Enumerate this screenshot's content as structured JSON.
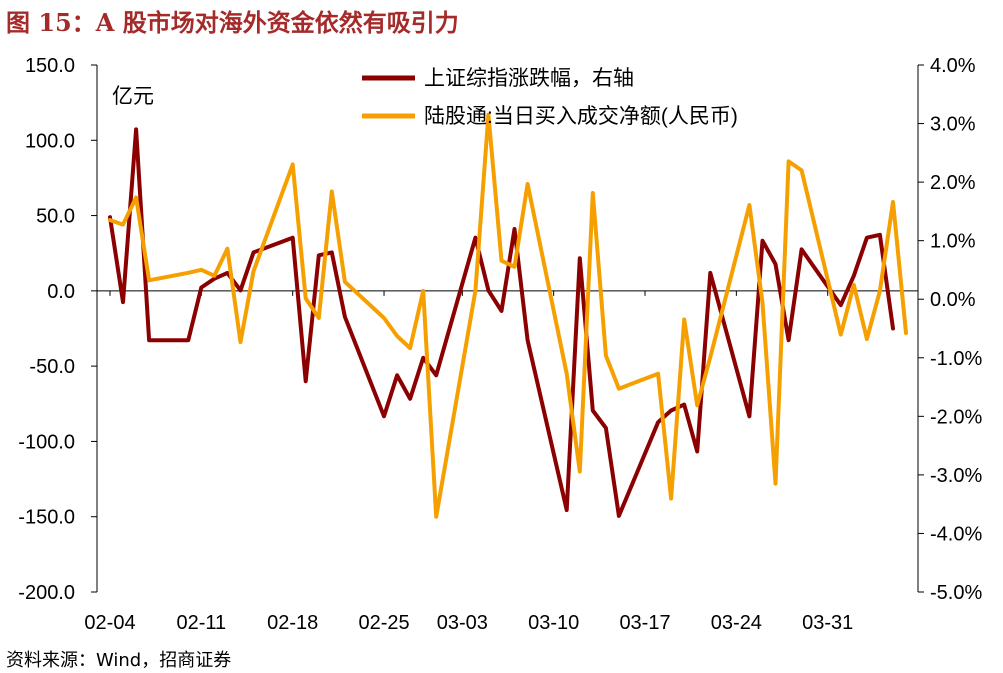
{
  "title": "图 15：A 股市场对海外资金依然有吸引力",
  "source": "资料来源：Wind，招商证券",
  "chart_data": {
    "type": "line",
    "unit_left": "亿元",
    "left_axis": {
      "min": -200,
      "max": 150,
      "step": 50,
      "ticks": [
        "-200.0",
        "-150.0",
        "-100.0",
        "-50.0",
        "0.0",
        "50.0",
        "100.0",
        "150.0"
      ]
    },
    "right_axis": {
      "min": -5,
      "max": 4,
      "step": 1,
      "ticks": [
        "-5.0%",
        "-4.0%",
        "-3.0%",
        "-2.0%",
        "-1.0%",
        "0.0%",
        "1.0%",
        "2.0%",
        "3.0%",
        "4.0%"
      ]
    },
    "x_ticks": [
      "02-04",
      "02-11",
      "02-18",
      "02-25",
      "03-03",
      "03-10",
      "03-17",
      "03-24",
      "03-31"
    ],
    "x_tick_days": [
      4,
      11,
      18,
      25,
      31,
      38,
      45,
      52,
      59
    ],
    "legend_position": "top",
    "colors": {
      "series1": "#8B0000",
      "series2": "#F5A000",
      "title": "#a52a2a",
      "axis": "#000000"
    },
    "series": [
      {
        "name": "上证综指涨跌幅，右轴",
        "axis": "right",
        "color": "#8B0000",
        "points": [
          [
            4,
            1.4
          ],
          [
            5,
            -0.05
          ],
          [
            6,
            2.9
          ],
          [
            7,
            -0.7
          ],
          [
            10,
            -0.7
          ],
          [
            11,
            0.2
          ],
          [
            12,
            0.35
          ],
          [
            13,
            0.45
          ],
          [
            14,
            0.15
          ],
          [
            15,
            0.8
          ],
          [
            18,
            1.05
          ],
          [
            19,
            -1.4
          ],
          [
            20,
            0.75
          ],
          [
            21,
            0.8
          ],
          [
            22,
            -0.3
          ],
          [
            25,
            -2.0
          ],
          [
            26,
            -1.3
          ],
          [
            27,
            -1.7
          ],
          [
            28,
            -1.0
          ],
          [
            29,
            -1.3
          ],
          [
            32,
            1.05
          ],
          [
            33,
            0.15
          ],
          [
            34,
            -0.2
          ],
          [
            35,
            1.2
          ],
          [
            36,
            -0.7
          ],
          [
            39,
            -3.6
          ],
          [
            40,
            0.7
          ],
          [
            41,
            -1.9
          ],
          [
            42,
            -2.2
          ],
          [
            43,
            -3.7
          ],
          [
            46,
            -2.1
          ],
          [
            47,
            -1.9
          ],
          [
            48,
            -1.8
          ],
          [
            49,
            -2.6
          ],
          [
            50,
            0.45
          ],
          [
            53,
            -2.0
          ],
          [
            54,
            1.0
          ],
          [
            55,
            0.6
          ],
          [
            56,
            -0.7
          ],
          [
            57,
            0.85
          ],
          [
            60,
            -0.1
          ],
          [
            61,
            0.4
          ],
          [
            62,
            1.05
          ],
          [
            63,
            1.1
          ],
          [
            64,
            -0.5
          ]
        ]
      },
      {
        "name": "陆股通:当日买入成交净额(人民币)",
        "axis": "left",
        "color": "#F5A000",
        "points": [
          [
            4,
            47
          ],
          [
            5,
            44
          ],
          [
            6,
            62
          ],
          [
            7,
            7
          ],
          [
            10,
            12
          ],
          [
            11,
            14
          ],
          [
            12,
            10
          ],
          [
            13,
            28
          ],
          [
            14,
            -34
          ],
          [
            15,
            13
          ],
          [
            18,
            84
          ],
          [
            19,
            -5
          ],
          [
            20,
            -18
          ],
          [
            21,
            66
          ],
          [
            22,
            6
          ],
          [
            25,
            -18
          ],
          [
            26,
            -30
          ],
          [
            27,
            -38
          ],
          [
            28,
            0
          ],
          [
            29,
            -150
          ],
          [
            32,
            0
          ],
          [
            33,
            117
          ],
          [
            34,
            20
          ],
          [
            35,
            16
          ],
          [
            36,
            71
          ],
          [
            39,
            -55
          ],
          [
            40,
            -120
          ],
          [
            41,
            65
          ],
          [
            42,
            -43
          ],
          [
            43,
            -65
          ],
          [
            46,
            -55
          ],
          [
            47,
            -138
          ],
          [
            48,
            -19
          ],
          [
            49,
            -76
          ],
          [
            50,
            -44
          ],
          [
            53,
            57
          ],
          [
            54,
            -8
          ],
          [
            55,
            -128
          ],
          [
            56,
            86
          ],
          [
            57,
            80
          ],
          [
            60,
            -29
          ],
          [
            61,
            4
          ],
          [
            62,
            -32
          ],
          [
            63,
            0
          ],
          [
            64,
            59
          ],
          [
            65,
            -28
          ]
        ]
      }
    ]
  }
}
